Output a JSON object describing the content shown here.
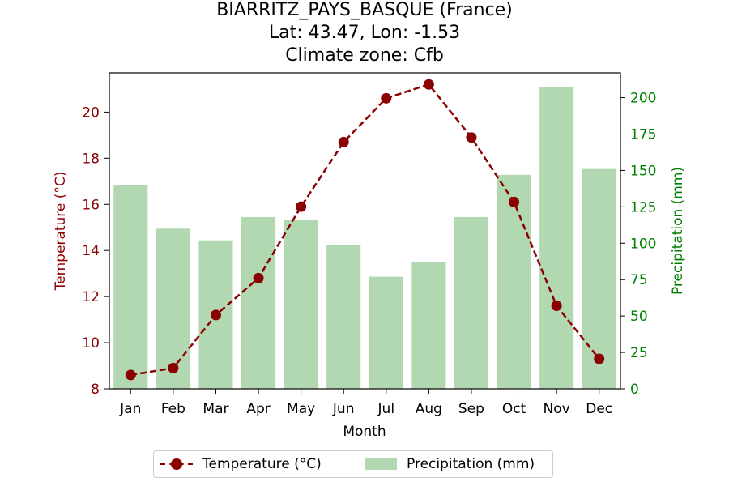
{
  "title": {
    "line1": "BIARRITZ_PAYS_BASQUE (France)",
    "line2": "Lat: 43.47, Lon: -1.53",
    "line3": "Climate zone: Cfb"
  },
  "chart_data": {
    "type": "bar",
    "title": "BIARRITZ_PAYS_BASQUE (France)\nLat: 43.47, Lon: -1.53\nClimate zone: Cfb",
    "xlabel": "Month",
    "categories": [
      "Jan",
      "Feb",
      "Mar",
      "Apr",
      "May",
      "Jun",
      "Jul",
      "Aug",
      "Sep",
      "Oct",
      "Nov",
      "Dec"
    ],
    "series": [
      {
        "name": "Temperature (°C)",
        "type": "line",
        "axis": "left",
        "color": "#8b0000",
        "values": [
          8.6,
          8.9,
          11.2,
          12.8,
          15.9,
          18.7,
          20.6,
          21.2,
          18.9,
          16.1,
          11.6,
          9.3
        ]
      },
      {
        "name": "Precipitation (mm)",
        "type": "bar",
        "axis": "right",
        "color": "#b2d8b2",
        "values": [
          140,
          110,
          102,
          118,
          116,
          99,
          77,
          87,
          118,
          147,
          207,
          151
        ]
      }
    ],
    "y_left": {
      "label": "Temperature (°C)",
      "ylim": [
        8,
        21.7
      ],
      "ticks": [
        8,
        10,
        12,
        14,
        16,
        18,
        20
      ],
      "color": "#8b0000"
    },
    "y_right": {
      "label": "Precipitation (mm)",
      "ylim": [
        0,
        217
      ],
      "ticks": [
        0,
        25,
        50,
        75,
        100,
        125,
        150,
        175,
        200
      ],
      "color": "#008000"
    },
    "grid": false,
    "legend_position": "bottom-center"
  }
}
